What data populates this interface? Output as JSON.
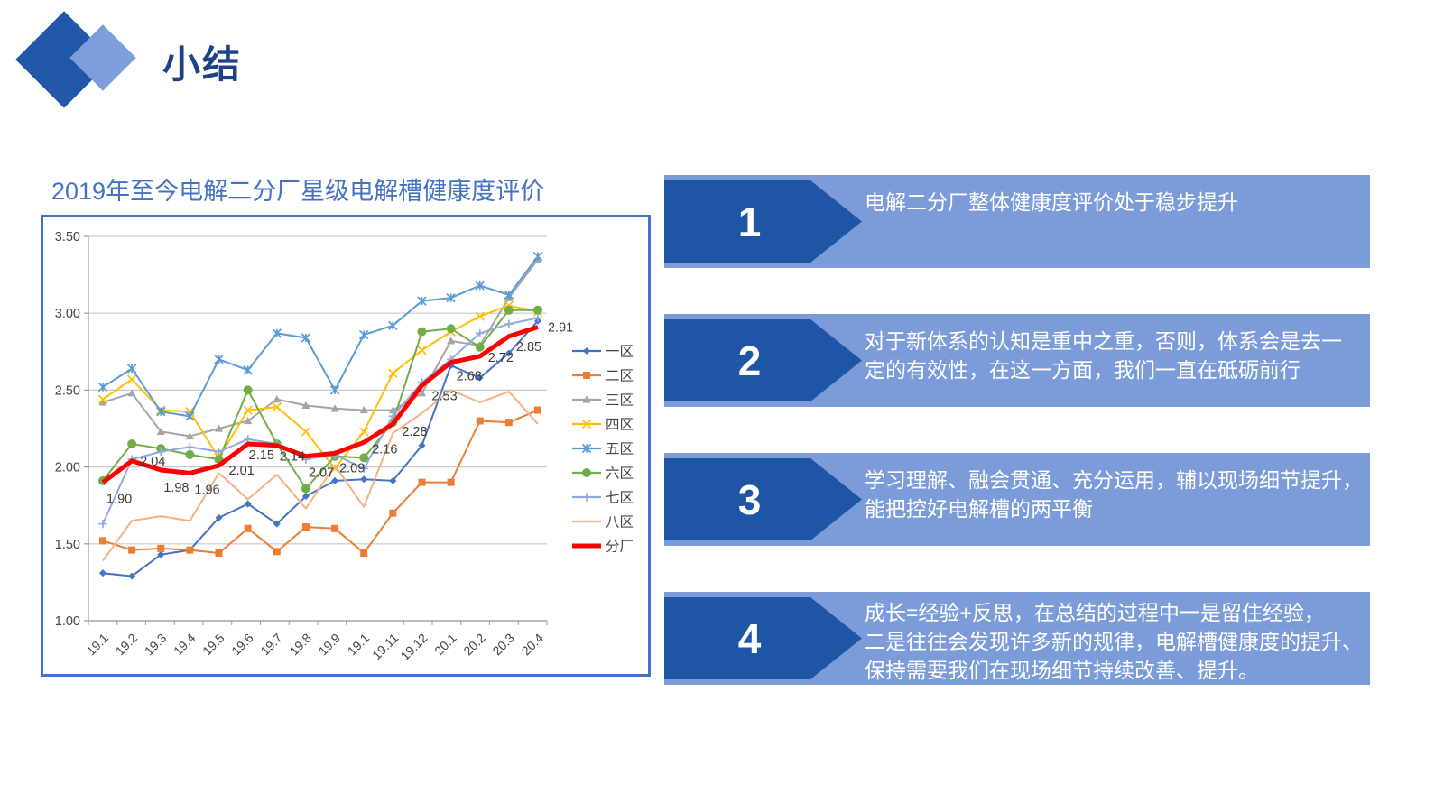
{
  "header": {
    "title": "小结"
  },
  "colors": {
    "diamond_dark": "#2157A8",
    "diamond_light": "#7E9DDB",
    "page_title": "#1F4188",
    "chart_title": "#4472C4",
    "chart_border": "#4472C4",
    "banner_dark": "#1E56A5",
    "banner_light": "#7C9CD9",
    "gridline": "#C9C9C9",
    "axis": "#9B9B9B",
    "tick_text": "#444444",
    "data_label_text": "#3B3B3B"
  },
  "chart_data": {
    "type": "line",
    "title": "2019年至今电解二分厂星级电解槽健康度评价",
    "xlabel": "",
    "ylabel": "",
    "ylim": [
      1.0,
      3.5
    ],
    "yticks": [
      "3.50",
      "3.00",
      "2.50",
      "2.00",
      "1.50",
      "1.00"
    ],
    "grid": true,
    "legend_position": "right",
    "categories": [
      "19.1",
      "19.2",
      "19.3",
      "19.4",
      "19.5",
      "19.6",
      "19.7",
      "19.8",
      "19.9",
      "19.1",
      "19.11",
      "19.12",
      "20.1",
      "20.2",
      "20.3",
      "20.4"
    ],
    "series": [
      {
        "name": "一区",
        "color": "#4472C4",
        "marker": "diamond",
        "line_width": 2,
        "values": [
          1.31,
          1.29,
          1.43,
          1.46,
          1.67,
          1.76,
          1.63,
          1.81,
          1.91,
          1.92,
          1.91,
          2.14,
          2.66,
          2.58,
          2.74,
          2.95
        ]
      },
      {
        "name": "二区",
        "color": "#ED7D31",
        "marker": "square",
        "line_width": 2,
        "values": [
          1.52,
          1.46,
          1.47,
          1.46,
          1.44,
          1.6,
          1.45,
          1.61,
          1.6,
          1.44,
          1.7,
          1.9,
          1.9,
          2.3,
          2.29,
          2.37
        ]
      },
      {
        "name": "三区",
        "color": "#A5A5A5",
        "marker": "triangle",
        "line_width": 2,
        "values": [
          2.42,
          2.48,
          2.23,
          2.2,
          2.25,
          2.3,
          2.44,
          2.4,
          2.38,
          2.37,
          2.37,
          2.48,
          2.82,
          2.79,
          3.1,
          3.35
        ]
      },
      {
        "name": "四区",
        "color": "#FFC000",
        "marker": "x",
        "line_width": 2,
        "values": [
          2.44,
          2.57,
          2.37,
          2.36,
          2.06,
          2.37,
          2.39,
          2.23,
          1.99,
          2.23,
          2.61,
          2.76,
          2.88,
          2.98,
          3.05,
          3.01
        ]
      },
      {
        "name": "五区",
        "color": "#5B9BD5",
        "marker": "asterisk",
        "line_width": 2,
        "values": [
          2.52,
          2.64,
          2.36,
          2.33,
          2.7,
          2.63,
          2.87,
          2.84,
          2.5,
          2.86,
          2.92,
          3.08,
          3.1,
          3.18,
          3.12,
          3.37
        ]
      },
      {
        "name": "六区",
        "color": "#70AD47",
        "marker": "circle",
        "line_width": 2,
        "values": [
          1.91,
          2.15,
          2.12,
          2.08,
          2.05,
          2.5,
          2.15,
          1.86,
          2.07,
          2.06,
          2.29,
          2.88,
          2.9,
          2.78,
          3.02,
          3.02
        ]
      },
      {
        "name": "七区",
        "color": "#8FAADC",
        "marker": "plus",
        "line_width": 2,
        "values": [
          1.63,
          2.05,
          2.1,
          2.13,
          2.1,
          2.18,
          2.15,
          2.05,
          2.08,
          1.99,
          2.33,
          2.55,
          2.7,
          2.87,
          2.93,
          2.97
        ]
      },
      {
        "name": "八区",
        "color": "#F4B183",
        "marker": "none",
        "line_width": 2,
        "values": [
          1.39,
          1.65,
          1.68,
          1.65,
          1.96,
          1.79,
          1.95,
          1.73,
          2.01,
          1.74,
          2.22,
          2.35,
          2.5,
          2.42,
          2.49,
          2.28
        ]
      },
      {
        "name": "分厂",
        "color": "#FF0000",
        "marker": "none",
        "line_width": 5,
        "values": [
          1.9,
          2.04,
          1.98,
          1.96,
          2.01,
          2.15,
          2.14,
          2.07,
          2.09,
          2.16,
          2.28,
          2.53,
          2.68,
          2.72,
          2.85,
          2.91
        ],
        "data_labels": [
          "1.90",
          "2.04",
          "1.98",
          "1.96",
          "2.01",
          "2.15",
          "2.14",
          "2.07",
          "2.09",
          "2.16",
          "2.28",
          "2.53",
          "2.68",
          "2.72",
          "2.85",
          "2.91"
        ]
      }
    ]
  },
  "banners": [
    {
      "number": "1",
      "lines": [
        "电解二分厂整体健康度评价处于稳步提升"
      ]
    },
    {
      "number": "2",
      "lines": [
        "对于新体系的认知是重中之重，否则，体系会是去一",
        "定的有效性，在这一方面，我们一直在砥砺前行"
      ]
    },
    {
      "number": "3",
      "lines": [
        "学习理解、融会贯通、充分运用，辅以现场细节提升，",
        "能把控好电解槽的两平衡"
      ]
    },
    {
      "number": "4",
      "lines": [
        "成长=经验+反思，在总结的过程中一是留住经验，",
        "二是往往会发现许多新的规律，电解槽健康度的提升、",
        "保持需要我们在现场细节持续改善、提升。"
      ]
    }
  ]
}
